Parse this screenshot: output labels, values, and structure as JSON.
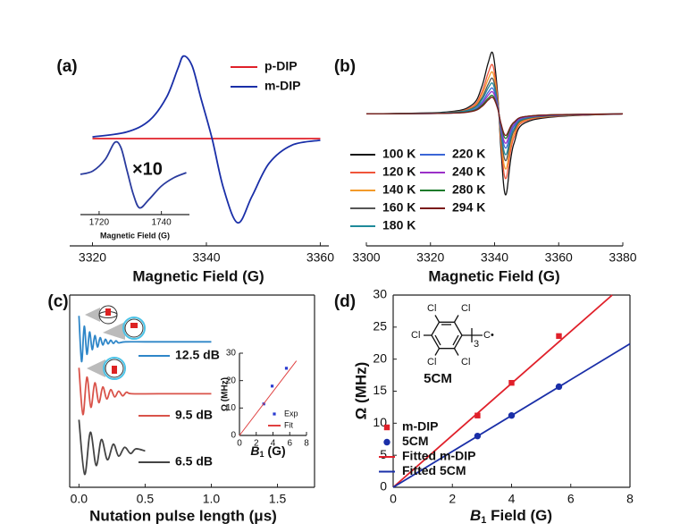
{
  "chart_data": [
    {
      "type": "line",
      "label": "(a)",
      "x_label": "Magnetic Field (G)",
      "xlim": [
        3316,
        3361.5
      ],
      "xticks": [
        3320,
        3340,
        3360
      ],
      "ylim": [
        -1.3,
        1.3
      ],
      "x": [
        3320,
        3326,
        3330,
        3333,
        3335,
        3336,
        3337.5,
        3339,
        3341,
        3343,
        3345.5,
        3348,
        3351,
        3355,
        3360
      ],
      "series": [
        {
          "name": "p-DIP",
          "color": "#e0202a",
          "values": [
            0,
            0,
            0,
            0,
            0,
            0,
            0,
            0,
            0,
            0,
            0,
            0,
            0,
            0,
            0
          ]
        },
        {
          "name": "m-DIP",
          "color": "#1a2fa8",
          "values": [
            0.02,
            0.08,
            0.22,
            0.5,
            0.85,
            1.0,
            0.88,
            0.5,
            0,
            -0.6,
            -1.02,
            -0.7,
            -0.3,
            -0.08,
            -0.02
          ]
        }
      ]
    },
    {
      "type": "line",
      "x_label": "Magnetic Field (G)",
      "annotation": "×10",
      "xlim": [
        1714,
        1749
      ],
      "xticks": [
        1720,
        1740
      ],
      "ylim": [
        -1.2,
        1.2
      ],
      "x": [
        1714,
        1718,
        1722,
        1725,
        1727,
        1729,
        1731,
        1733,
        1736,
        1740,
        1744,
        1748
      ],
      "series": [
        {
          "color": "#2a3b9e",
          "values": [
            0.0,
            0.1,
            0.45,
            0.95,
            0.8,
            0.1,
            -0.6,
            -1.0,
            -0.75,
            -0.35,
            -0.1,
            0.05
          ]
        }
      ]
    },
    {
      "type": "line",
      "label": "(b)",
      "x_label": "Magnetic Field (G)",
      "xlim": [
        3300,
        3380
      ],
      "xticks": [
        3300,
        3320,
        3340,
        3360,
        3380
      ],
      "ylim": [
        -2.2,
        1.45
      ],
      "x": [
        3300,
        3325,
        3333,
        3336,
        3338,
        3339.5,
        3341,
        3342,
        3343.5,
        3346,
        3352,
        3380
      ],
      "series": [
        {
          "name": "100 K",
          "color": "#111111",
          "values": [
            0,
            0.03,
            0.15,
            0.45,
            0.85,
            1,
            0.3,
            -0.6,
            -1.35,
            -0.5,
            -0.1,
            0
          ]
        },
        {
          "name": "120 K",
          "color": "#f0553a",
          "values": [
            0,
            0.02,
            0.12,
            0.36,
            0.68,
            0.8,
            0.24,
            -0.48,
            -1.08,
            -0.4,
            -0.08,
            0
          ]
        },
        {
          "name": "140 K",
          "color": "#f39a2a",
          "values": [
            0,
            0.02,
            0.1,
            0.31,
            0.58,
            0.68,
            0.2,
            -0.41,
            -0.92,
            -0.34,
            -0.07,
            0
          ]
        },
        {
          "name": "160 K",
          "color": "#555555",
          "values": [
            0,
            0.02,
            0.09,
            0.26,
            0.49,
            0.58,
            0.17,
            -0.35,
            -0.78,
            -0.29,
            -0.06,
            0
          ]
        },
        {
          "name": "180 K",
          "color": "#1f8a9a",
          "values": [
            0,
            0.02,
            0.08,
            0.23,
            0.43,
            0.5,
            0.15,
            -0.3,
            -0.68,
            -0.25,
            -0.05,
            0
          ]
        },
        {
          "name": "220 K",
          "color": "#3a66d6",
          "values": [
            0,
            0.01,
            0.06,
            0.19,
            0.36,
            0.42,
            0.13,
            -0.25,
            -0.57,
            -0.21,
            -0.04,
            0
          ]
        },
        {
          "name": "240 K",
          "color": "#9b30c8",
          "values": [
            0,
            0.01,
            0.05,
            0.16,
            0.31,
            0.36,
            0.11,
            -0.22,
            -0.49,
            -0.18,
            -0.04,
            0
          ]
        },
        {
          "name": "280 K",
          "color": "#1a7a2a",
          "values": [
            0,
            0.01,
            0.05,
            0.14,
            0.26,
            0.3,
            0.09,
            -0.18,
            -0.41,
            -0.15,
            -0.03,
            0
          ]
        },
        {
          "name": "294 K",
          "color": "#7a1a1a",
          "values": [
            0,
            0.01,
            0.04,
            0.12,
            0.23,
            0.27,
            0.08,
            -0.16,
            -0.36,
            -0.14,
            -0.03,
            0
          ]
        }
      ]
    },
    {
      "type": "line",
      "label": "(c)",
      "x_label": "Nutation pulse length (μs)",
      "xlim": [
        -0.07,
        1.78
      ],
      "xticks": [
        {
          "value": 0,
          "label": "0.0"
        },
        {
          "value": 0.5,
          "label": "0.5"
        },
        {
          "value": 1,
          "label": "1.0"
        },
        {
          "value": 1.5,
          "label": "1.5"
        }
      ],
      "ylim": [
        -0.7,
        3.0
      ],
      "series": [
        {
          "name": "12.5 dB",
          "color": "#2e86c8",
          "x": [
            0,
            0.02,
            0.04,
            0.06,
            0.08,
            0.1,
            0.12,
            0.14,
            0.16,
            0.18,
            0.2,
            0.22,
            0.24,
            0.26,
            0.28,
            0.3,
            0.35,
            0.5,
            0.7,
            1.0
          ],
          "values": [
            2.6,
            1.72,
            2.4,
            1.86,
            2.29,
            1.95,
            2.22,
            2.0,
            2.18,
            2.04,
            2.15,
            2.06,
            2.13,
            2.07,
            2.12,
            2.08,
            2.1,
            2.1,
            2.1,
            2.1
          ]
        },
        {
          "name": "9.5 dB",
          "color": "#d9534a",
          "x": [
            0,
            0.03,
            0.06,
            0.09,
            0.12,
            0.15,
            0.18,
            0.21,
            0.24,
            0.27,
            0.3,
            0.33,
            0.36,
            0.4,
            0.6,
            1.0
          ],
          "values": [
            1.6,
            0.7,
            1.42,
            0.84,
            1.31,
            0.93,
            1.23,
            1.0,
            1.18,
            1.04,
            1.15,
            1.06,
            1.13,
            1.1,
            1.1,
            1.1
          ]
        },
        {
          "name": "6.5 dB",
          "color": "#444444",
          "x": [
            0,
            0.043,
            0.086,
            0.13,
            0.17,
            0.215,
            0.26,
            0.3,
            0.345,
            0.39,
            0.43,
            0.5
          ],
          "values": [
            0.6,
            -0.45,
            0.36,
            -0.28,
            0.22,
            -0.17,
            0.13,
            -0.1,
            0.07,
            -0.05,
            0.04,
            0
          ]
        }
      ]
    },
    {
      "type": "scatter",
      "x_label": [
        "B",
        "1",
        " (G)"
      ],
      "y_label": "Ω (MHz)",
      "xlim": [
        0,
        8
      ],
      "xticks": [
        0,
        2,
        4,
        6,
        8
      ],
      "ylim": [
        0,
        30
      ],
      "yticks": [
        0,
        10,
        20,
        30
      ],
      "series": [
        {
          "name": "Exp",
          "color": "#2a3bd0",
          "marker": "square",
          "x": [
            2.9,
            3.9,
            5.6
          ],
          "values": [
            11.5,
            18,
            24.5
          ]
        },
        {
          "name": "Fit",
          "color": "#e04040",
          "line": true,
          "x": [
            0,
            6.8
          ],
          "values": [
            0,
            27.2
          ]
        }
      ]
    },
    {
      "type": "scatter",
      "label": "(d)",
      "x_label": [
        "B",
        "1",
        " Field (G)"
      ],
      "y_label": "Ω (MHz)",
      "xlim": [
        0,
        8
      ],
      "xticks": [
        0,
        2,
        4,
        6,
        8
      ],
      "ylim": [
        0,
        30
      ],
      "yticks": [
        0,
        5,
        10,
        15,
        20,
        25,
        30
      ],
      "series": [
        {
          "name": "m-DIP",
          "color": "#e0202a",
          "marker": "square",
          "x": [
            2.85,
            4.0,
            5.6
          ],
          "values": [
            11.2,
            16.3,
            23.6
          ]
        },
        {
          "name": "5CM",
          "color": "#1a2fa8",
          "marker": "circle",
          "x": [
            2.85,
            4.0,
            5.6
          ],
          "values": [
            8.0,
            11.2,
            15.7
          ]
        },
        {
          "name": "Fitted m-DIP",
          "color": "#e0202a",
          "line": true,
          "x": [
            0,
            7.4
          ],
          "values": [
            0,
            30
          ]
        },
        {
          "name": "Fitted 5CM",
          "color": "#1a2fa8",
          "line": true,
          "x": [
            0,
            8
          ],
          "values": [
            0,
            22.4
          ]
        }
      ],
      "structure": {
        "atoms": [
          "Cl",
          "Cl",
          "Cl",
          "Cl",
          "Cl"
        ],
        "count": "3",
        "group": "C•",
        "name": "5CM"
      }
    }
  ]
}
